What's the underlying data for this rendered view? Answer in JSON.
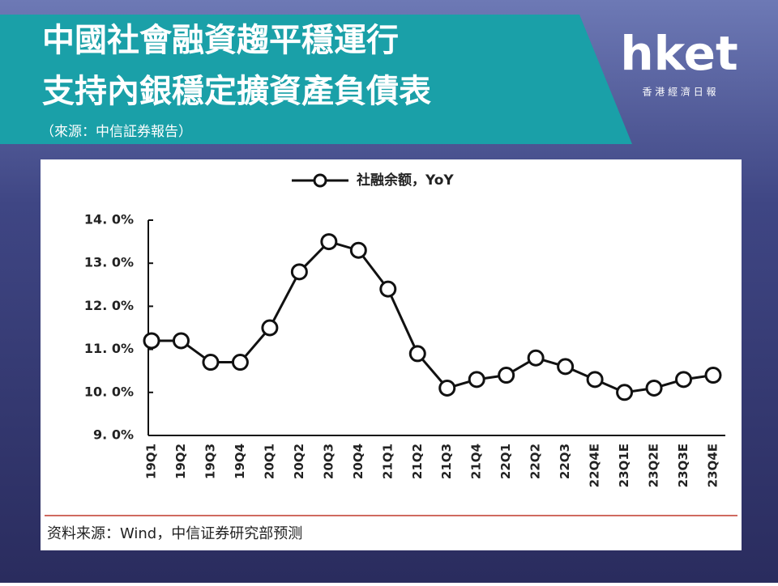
{
  "header": {
    "title_lines": [
      "中國社會融資趨平穩運行",
      "支持內銀穩定擴資產負債表"
    ],
    "source": "（來源：中信証券報告）"
  },
  "logo": {
    "name": "hket",
    "tagline": "香 港 經 濟 日 報"
  },
  "chart_data": {
    "type": "line",
    "categories": [
      "19Q1",
      "19Q2",
      "19Q3",
      "19Q4",
      "20Q1",
      "20Q2",
      "20Q3",
      "20Q4",
      "21Q1",
      "21Q2",
      "21Q3",
      "21Q4",
      "22Q1",
      "22Q2",
      "22Q3",
      "22Q4E",
      "23Q1E",
      "23Q2E",
      "23Q3E",
      "23Q4E"
    ],
    "series": [
      {
        "name": "社融余额，YoY",
        "color": "#111111",
        "values": [
          11.2,
          11.2,
          10.7,
          10.7,
          11.5,
          12.8,
          13.5,
          13.3,
          12.4,
          10.9,
          10.1,
          10.3,
          10.4,
          10.8,
          10.6,
          10.3,
          10.0,
          10.1,
          10.3,
          10.4
        ]
      }
    ],
    "ylim": [
      9,
      14
    ],
    "yticks": [
      {
        "value": 9,
        "label": "9. 0%"
      },
      {
        "value": 10,
        "label": "10. 0%"
      },
      {
        "value": 11,
        "label": "11. 0%"
      },
      {
        "value": 12,
        "label": "12. 0%"
      },
      {
        "value": 13,
        "label": "13. 0%"
      },
      {
        "value": 14,
        "label": "14. 0%"
      }
    ],
    "legend": "top"
  },
  "footer": {
    "source": "资料来源：Wind，中信证券研究部预测"
  }
}
